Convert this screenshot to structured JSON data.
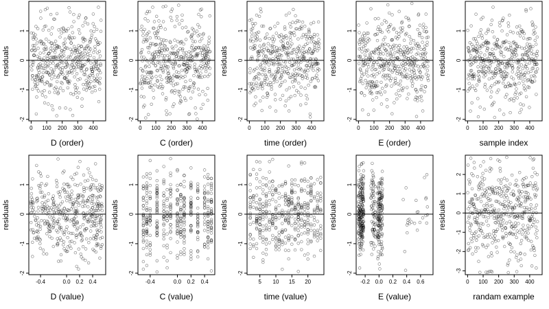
{
  "chart_data": [
    {
      "type": "scatter",
      "xlabel": "D (order)",
      "ylabel": "residuals",
      "xticks": [
        "0",
        "100",
        "200",
        "300",
        "400"
      ],
      "yticks": [
        "-2",
        "-1",
        "0",
        "1"
      ],
      "xlim": [
        -15,
        480
      ],
      "ylim": [
        -2.05,
        2.0
      ],
      "xmode": "index",
      "seed": 11,
      "n": 450,
      "hline": 0
    },
    {
      "type": "scatter",
      "xlabel": "C (order)",
      "ylabel": "residuals",
      "xticks": [
        "0",
        "100",
        "200",
        "300",
        "400"
      ],
      "yticks": [
        "-2",
        "-1",
        "0",
        "1"
      ],
      "xlim": [
        -15,
        480
      ],
      "ylim": [
        -2.05,
        2.0
      ],
      "xmode": "index",
      "seed": 23,
      "n": 450,
      "hline": 0
    },
    {
      "type": "scatter",
      "xlabel": "time (order)",
      "ylabel": "residuals",
      "xticks": [
        "0",
        "100",
        "200",
        "300",
        "400"
      ],
      "yticks": [
        "-2",
        "-1",
        "0",
        "1"
      ],
      "xlim": [
        -15,
        480
      ],
      "ylim": [
        -2.05,
        2.0
      ],
      "xmode": "index",
      "seed": 37,
      "n": 450,
      "hline": 0
    },
    {
      "type": "scatter",
      "xlabel": "E (order)",
      "ylabel": "residuals",
      "xticks": [
        "0",
        "100",
        "200",
        "300",
        "400"
      ],
      "yticks": [
        "-2",
        "-1",
        "0",
        "1"
      ],
      "xlim": [
        -15,
        480
      ],
      "ylim": [
        -2.05,
        2.0
      ],
      "xmode": "index",
      "seed": 41,
      "n": 450,
      "hline": 0
    },
    {
      "type": "scatter",
      "xlabel": "sample index",
      "ylabel": "residuals",
      "xticks": [
        "0",
        "100",
        "200",
        "300",
        "400"
      ],
      "yticks": [
        "-2",
        "-1",
        "0",
        "1"
      ],
      "xlim": [
        -15,
        480
      ],
      "ylim": [
        -2.05,
        2.0
      ],
      "xmode": "index",
      "seed": 53,
      "n": 450,
      "hline": 0
    },
    {
      "type": "scatter",
      "xlabel": "D (value)",
      "ylabel": "residuals",
      "xticks": [
        "-0.4",
        "0.0",
        "0.2",
        "0.4"
      ],
      "yticks": [
        "-2",
        "-1",
        "0",
        "1"
      ],
      "xlim": [
        -0.58,
        0.6
      ],
      "ylim": [
        -2.05,
        2.0
      ],
      "xmode": "continuous",
      "x_range": [
        -0.55,
        0.55
      ],
      "seed": 61,
      "n": 450,
      "hline": 0
    },
    {
      "type": "scatter",
      "xlabel": "C (value)",
      "ylabel": "residuals",
      "xticks": [
        "-0.4",
        "0.0",
        "0.2",
        "0.4"
      ],
      "yticks": [
        "-2",
        "-1",
        "0",
        "1"
      ],
      "xlim": [
        -0.58,
        0.55
      ],
      "ylim": [
        -2.05,
        2.0
      ],
      "xmode": "discrete",
      "x_levels": [
        -0.5,
        -0.45,
        -0.4,
        -0.3,
        -0.2,
        -0.15,
        -0.1,
        0,
        0.05,
        0.1,
        0.2,
        0.3,
        0.4,
        0.45,
        0.5
      ],
      "seed": 71,
      "n": 450,
      "hline": 0
    },
    {
      "type": "scatter",
      "xlabel": "time (value)",
      "ylabel": "residuals",
      "xticks": [
        "5",
        "10",
        "15",
        "20"
      ],
      "yticks": [
        "-2",
        "-1",
        "0",
        "1"
      ],
      "xlim": [
        1,
        25
      ],
      "ylim": [
        -2.05,
        2.0
      ],
      "xmode": "discrete",
      "x_levels": [
        2,
        3,
        4,
        5,
        6,
        7,
        8,
        9,
        10,
        11,
        12,
        13,
        14,
        15,
        16,
        17,
        18,
        19,
        20,
        21,
        22,
        23,
        24
      ],
      "seed": 83,
      "n": 450,
      "hline": 0
    },
    {
      "type": "scatter",
      "xlabel": "E (value)",
      "ylabel": "residuals",
      "xticks": [
        "-0.2",
        "0.0",
        "0.2",
        "0.4",
        "0.6"
      ],
      "yticks": [
        "-2",
        "-1",
        "0",
        "1"
      ],
      "xlim": [
        -0.33,
        0.78
      ],
      "ylim": [
        -2.05,
        2.0
      ],
      "xmode": "clustered",
      "x_clusters": [
        [
          -0.3,
          -0.22,
          0.5
        ],
        [
          -0.12,
          -0.05,
          0.15
        ],
        [
          -0.02,
          0.05,
          0.3
        ],
        [
          0.3,
          0.7,
          0.05
        ]
      ],
      "seed": 97,
      "n": 450,
      "hline": 0
    },
    {
      "type": "scatter",
      "xlabel": "randam example",
      "ylabel": "residuals",
      "xticks": [
        "0",
        "100",
        "200",
        "300",
        "400"
      ],
      "yticks": [
        "-3",
        "-2",
        "-1",
        "0",
        "1",
        "2"
      ],
      "xlim": [
        -15,
        480
      ],
      "ylim": [
        -3.2,
        3.0
      ],
      "xmode": "index",
      "y_scale": 1.3,
      "seed": 109,
      "n": 450,
      "hline": 0
    }
  ]
}
